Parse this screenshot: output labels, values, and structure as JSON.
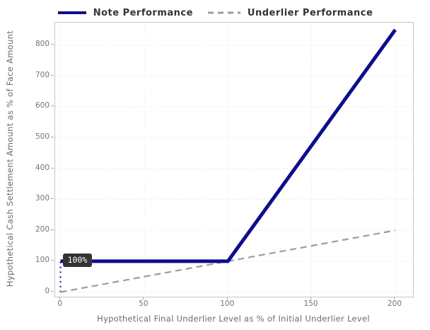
{
  "legend": {
    "items": [
      {
        "label": "Note Performance",
        "style": "solid",
        "color": "#0d0d8c",
        "thickness": 4
      },
      {
        "label": "Underlier Performance",
        "style": "dashed",
        "color": "#9c9c9c",
        "thickness": 3
      }
    ]
  },
  "chart_data": {
    "type": "line",
    "title": "",
    "xlabel": "Hypothetical Final Underlier Level as % of Initial Underlier Level",
    "ylabel": "Hypothetical Cash Settlement Amount as % of Face Amount",
    "x_ticks": [
      0,
      50,
      100,
      150,
      200
    ],
    "y_ticks": [
      0,
      100,
      200,
      300,
      400,
      500,
      600,
      700,
      800
    ],
    "xlim": [
      -3.2,
      210.6
    ],
    "ylim": [
      -15,
      873
    ],
    "grid": true,
    "grid_style": "dotted",
    "grid_color": "#dedede",
    "legend_position": "top-center",
    "series": [
      {
        "name": "Note Performance",
        "x": [
          0,
          100,
          200
        ],
        "y": [
          100,
          100,
          850
        ],
        "style": "solid",
        "color": "#0d0d8c",
        "width": 5
      },
      {
        "name": "Underlier Performance",
        "x": [
          0,
          200
        ],
        "y": [
          0,
          200
        ],
        "style": "dashed",
        "color": "#9c9c9c",
        "width": 2.2
      },
      {
        "name": "initial-level-guide",
        "x": [
          0,
          0
        ],
        "y": [
          0,
          100
        ],
        "style": "dotted",
        "color": "#0d0d8c",
        "width": 2.2
      }
    ],
    "annotation": {
      "text": "100%",
      "x": 0,
      "y": 100,
      "bg": "#333333",
      "fg": "#ffffff"
    }
  }
}
